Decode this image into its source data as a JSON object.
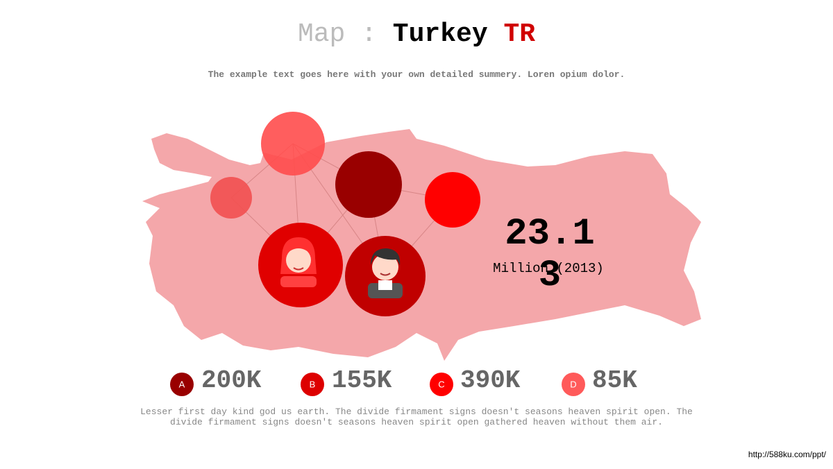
{
  "header": {
    "title_prefix": "Map :",
    "title_main": "Turkey",
    "title_code": "TR",
    "subtitle": "The example text goes here with your own detailed summery. Loren opium dolor."
  },
  "stat": {
    "value": "23.13",
    "label": "Million (2013)"
  },
  "legend": [
    {
      "letter": "A",
      "value": "200K"
    },
    {
      "letter": "B",
      "value": "155K"
    },
    {
      "letter": "C",
      "value": "390K"
    },
    {
      "letter": "D",
      "value": "85K"
    }
  ],
  "footer": "Lesser first day kind god us earth. The divide firmament signs doesn't seasons heaven spirit open. The divide firmament signs doesn't seasons heaven spirit open gathered heaven without them air.",
  "watermark": "http://588ku.com/ppt/"
}
